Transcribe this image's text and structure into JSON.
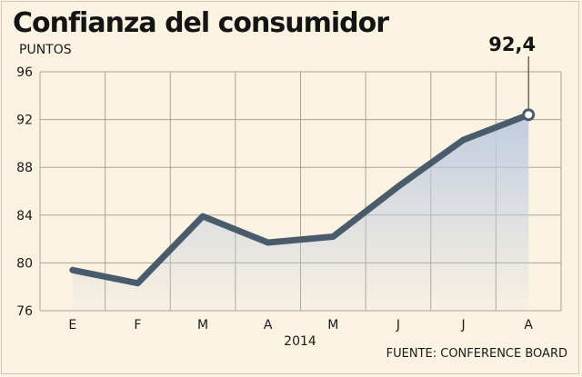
{
  "title": "Confianza del consumidor",
  "source": "FUENTE: CONFERENCE BOARD",
  "chart_data": {
    "type": "area",
    "title": "Confianza del consumidor",
    "ylabel": "PUNTOS",
    "xlabel": "2014",
    "categories": [
      "E",
      "F",
      "M",
      "A",
      "M",
      "J",
      "J",
      "A"
    ],
    "series": [
      {
        "values": [
          79.4,
          78.3,
          83.9,
          81.7,
          82.2,
          86.4,
          90.3,
          92.4
        ]
      }
    ],
    "ylim": [
      76,
      96
    ],
    "yticks": [
      "76",
      "80",
      "84",
      "88",
      "92",
      "96"
    ],
    "annotation": {
      "text": "92,4"
    },
    "grid": true,
    "line_color": "#4a5c6c",
    "fill_color": "#c3cde0"
  }
}
